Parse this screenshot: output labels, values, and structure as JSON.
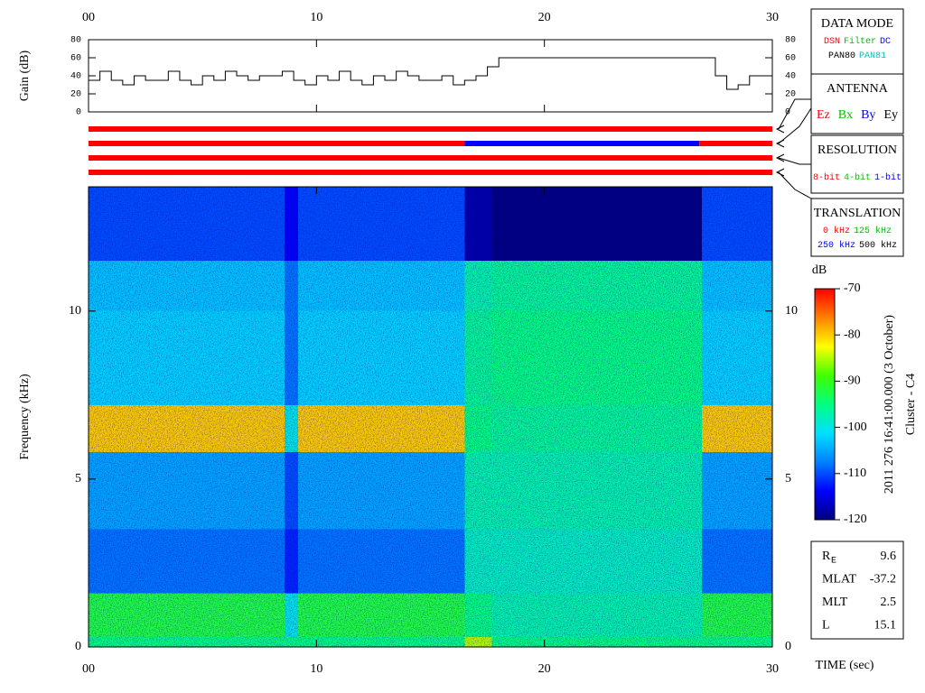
{
  "chart_data": [
    {
      "type": "line",
      "ylabel": "Gain (dB)",
      "color": "#000000",
      "x": [
        0,
        0.5,
        1,
        1.5,
        2,
        2.5,
        3,
        3.5,
        4,
        4.5,
        5,
        5.5,
        6,
        6.5,
        7,
        7.5,
        8,
        8.5,
        9,
        9.5,
        10,
        10.5,
        11,
        11.5,
        12,
        12.5,
        13,
        13.5,
        14,
        14.5,
        15,
        15.5,
        16,
        16.5,
        17,
        17.5,
        18,
        27,
        27.5,
        28,
        28.5,
        29,
        29.5,
        30
      ],
      "values": [
        35,
        45,
        35,
        30,
        40,
        35,
        35,
        45,
        35,
        30,
        40,
        35,
        45,
        40,
        35,
        40,
        40,
        45,
        35,
        30,
        40,
        35,
        45,
        35,
        30,
        40,
        35,
        45,
        40,
        35,
        35,
        40,
        30,
        35,
        40,
        50,
        60,
        60,
        40,
        25,
        30,
        40,
        40,
        35
      ],
      "xlim": [
        0,
        30
      ],
      "xticks": [
        {
          "value": 0,
          "label": "00"
        },
        10,
        20,
        30
      ],
      "ylim": [
        0,
        80
      ],
      "yticks": [
        0,
        20,
        40,
        60,
        80
      ]
    },
    {
      "type": "timeline",
      "xlim": [
        0,
        30
      ],
      "rows": [
        {
          "segments": [
            {
              "start": 0,
              "end": 30,
              "color": "#ff0000"
            }
          ]
        },
        {
          "segments": [
            {
              "start": 0,
              "end": 16.5,
              "color": "#ff0000"
            },
            {
              "start": 16.5,
              "end": 26.8,
              "color": "#0000ff"
            },
            {
              "start": 26.8,
              "end": 30,
              "color": "#ff0000"
            }
          ]
        },
        {
          "segments": [
            {
              "start": 0,
              "end": 30,
              "color": "#ff0000"
            }
          ]
        },
        {
          "segments": [
            {
              "start": 0,
              "end": 30,
              "color": "#ff0000"
            }
          ]
        }
      ]
    },
    {
      "type": "heatmap",
      "ylabel": "Frequency (kHz)",
      "xlabel": "TIME (sec)",
      "xlim": [
        0,
        30
      ],
      "xticks": [
        {
          "value": 0,
          "label": "00"
        },
        10,
        20,
        30
      ],
      "ylim": [
        0,
        13.7
      ],
      "yticks": [
        0,
        5,
        10
      ],
      "x_edges": [
        0,
        8.6,
        9.2,
        16.5,
        17.7,
        26.9,
        30
      ],
      "y_edges": [
        0,
        0.3,
        1.6,
        3.5,
        5.8,
        7.2,
        10,
        11.5,
        13.7
      ],
      "z": [
        [
          -95,
          -95,
          -95,
          -85,
          -95,
          -95
        ],
        [
          -92,
          -100,
          -92,
          -95,
          -97,
          -92
        ],
        [
          -108,
          -112,
          -108,
          -98,
          -98,
          -108
        ],
        [
          -105,
          -110,
          -105,
          -97,
          -97,
          -105
        ],
        [
          -80,
          -100,
          -80,
          -95,
          -96,
          -80
        ],
        [
          -102,
          -108,
          -102,
          -96,
          -95,
          -102
        ],
        [
          -103,
          -108,
          -103,
          -97,
          -96,
          -103
        ],
        [
          -110,
          -114,
          -110,
          -118,
          -120,
          -110
        ]
      ],
      "colorbar": {
        "label": "dB",
        "lim": [
          -120,
          -70
        ],
        "ticks": [
          -70,
          -80,
          -90,
          -100,
          -110,
          -120
        ],
        "colormap": [
          "#00007f",
          "#0000ff",
          "#0080ff",
          "#00e0ff",
          "#00ff80",
          "#40ff00",
          "#ffff00",
          "#ff8000",
          "#ff0000"
        ]
      }
    }
  ],
  "side_panels": [
    {
      "title": "DATA MODE",
      "lines": [
        [
          {
            "text": "DSN",
            "color": "#ff0000"
          },
          {
            "text": "Filter",
            "color": "#00c000"
          },
          {
            "text": "DC",
            "color": "#0000ff"
          }
        ],
        [
          {
            "text": "PAN80",
            "color": "#000000"
          },
          {
            "text": "PAN81",
            "color": "#00c0c0"
          }
        ]
      ]
    },
    {
      "title": "ANTENNA",
      "lines": [
        [
          {
            "text": "Ez",
            "color": "#ff0000"
          },
          {
            "text": "Bx",
            "color": "#00c000"
          },
          {
            "text": "By",
            "color": "#0000ff"
          },
          {
            "text": "Ey",
            "color": "#000000"
          }
        ]
      ]
    },
    {
      "title": "RESOLUTION",
      "lines": [
        [
          {
            "text": "8-bit",
            "color": "#ff0000"
          },
          {
            "text": "4-bit",
            "color": "#00c000"
          },
          {
            "text": "1-bit",
            "color": "#0000ff"
          }
        ]
      ]
    },
    {
      "title": "TRANSLATION",
      "lines": [
        [
          {
            "text": "0 kHz",
            "color": "#ff0000"
          },
          {
            "text": "125 kHz",
            "color": "#00c000"
          }
        ],
        [
          {
            "text": "250 kHz",
            "color": "#0000ff"
          },
          {
            "text": "500 kHz",
            "color": "#000000"
          }
        ]
      ]
    }
  ],
  "orbit": [
    {
      "label": "R",
      "sub": "E",
      "value": 9.6
    },
    {
      "label": "MLAT",
      "value": -37.2
    },
    {
      "label": "MLT",
      "value": 2.5
    },
    {
      "label": "L",
      "value": 15.1
    }
  ],
  "timestamp": "2011 276 16:41:00.000 (3 October)",
  "spacecraft": "Cluster - C4"
}
